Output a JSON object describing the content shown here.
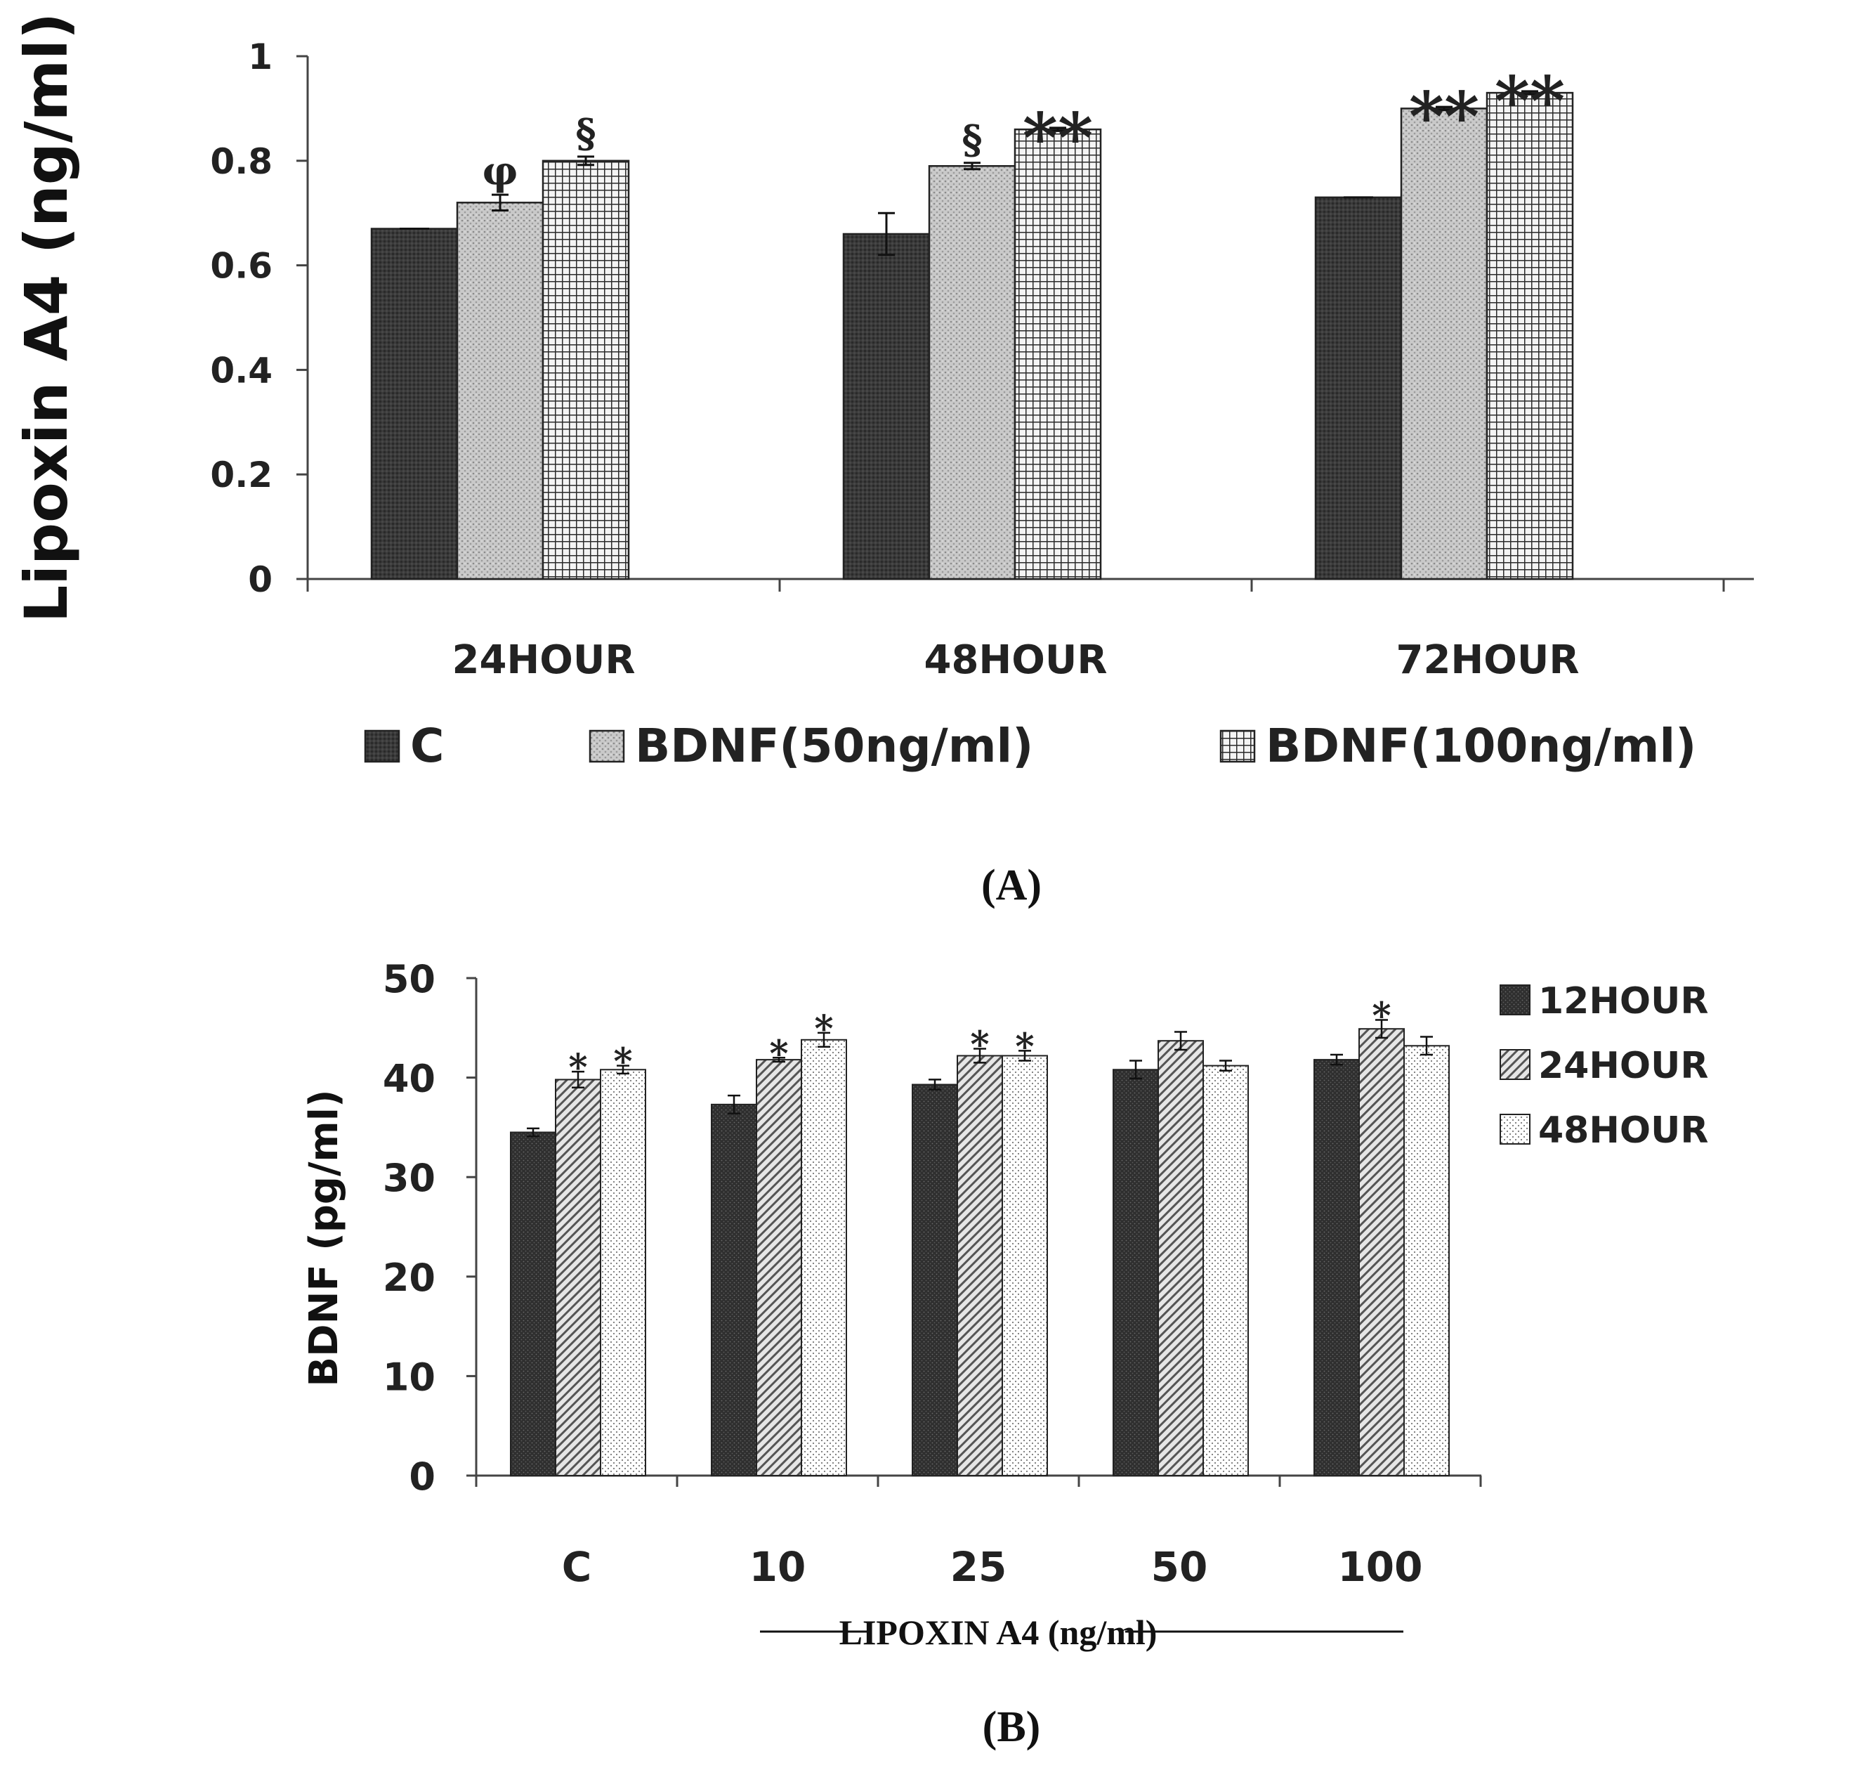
{
  "chart_data": [
    {
      "type": "bar",
      "panel_label": "(A)",
      "title": "",
      "xlabel": "",
      "ylabel": "Lipoxin A4 (ng/ml)",
      "ylim": [
        0,
        1
      ],
      "yticks": [
        0,
        0.2,
        0.4,
        0.6,
        0.8,
        1
      ],
      "ytick_labels": [
        "0",
        "0.2",
        "0.4",
        "0.6",
        "0.8",
        "1"
      ],
      "categories": [
        "24HOUR",
        "48HOUR",
        "72HOUR"
      ],
      "series": [
        {
          "name": "C",
          "pattern": "dark",
          "values": [
            0.67,
            0.66,
            0.73
          ],
          "errors": [
            0.0,
            0.04,
            0.0
          ],
          "annotations": [
            "",
            "",
            ""
          ]
        },
        {
          "name": "BDNF(50ng/ml)",
          "pattern": "stipple",
          "values": [
            0.72,
            0.79,
            0.9
          ],
          "errors": [
            0.015,
            0.006,
            0.003
          ],
          "annotations": [
            "φ",
            "§",
            "**"
          ]
        },
        {
          "name": "BDNF(100ng/ml)",
          "pattern": "grid",
          "values": [
            0.8,
            0.86,
            0.93
          ],
          "errors": [
            0.008,
            0.003,
            0.003
          ],
          "annotations": [
            "§",
            "**",
            "**"
          ]
        }
      ],
      "legend_position": "bottom"
    },
    {
      "type": "bar",
      "panel_label": "(B)",
      "title": "",
      "xlabel": "LIPOXIN A4 (ng/ml)",
      "ylabel": "BDNF (pg/ml)",
      "ylim": [
        0,
        50
      ],
      "yticks": [
        0,
        10,
        20,
        30,
        40,
        50
      ],
      "ytick_labels": [
        "0",
        "10",
        "20",
        "30",
        "40",
        "50"
      ],
      "categories": [
        "C",
        "10",
        "25",
        "50",
        "100"
      ],
      "series": [
        {
          "name": "12HOUR",
          "pattern": "dots-dark",
          "values": [
            34.5,
            37.3,
            39.3,
            40.8,
            41.8
          ],
          "errors": [
            0.4,
            0.9,
            0.5,
            0.9,
            0.5
          ],
          "annotations": [
            "",
            "",
            "",
            "",
            ""
          ]
        },
        {
          "name": "24HOUR",
          "pattern": "hatch",
          "values": [
            39.8,
            41.8,
            42.2,
            43.7,
            44.9
          ],
          "errors": [
            0.8,
            0.2,
            0.7,
            0.9,
            0.9
          ],
          "annotations": [
            "*",
            "*",
            "*",
            "",
            "*"
          ]
        },
        {
          "name": "48HOUR",
          "pattern": "dots-light",
          "values": [
            40.8,
            43.8,
            42.2,
            41.2,
            43.2
          ],
          "errors": [
            0.4,
            0.7,
            0.5,
            0.5,
            0.9
          ],
          "annotations": [
            "*",
            "*",
            "*",
            "",
            ""
          ]
        }
      ],
      "legend_position": "right"
    }
  ]
}
